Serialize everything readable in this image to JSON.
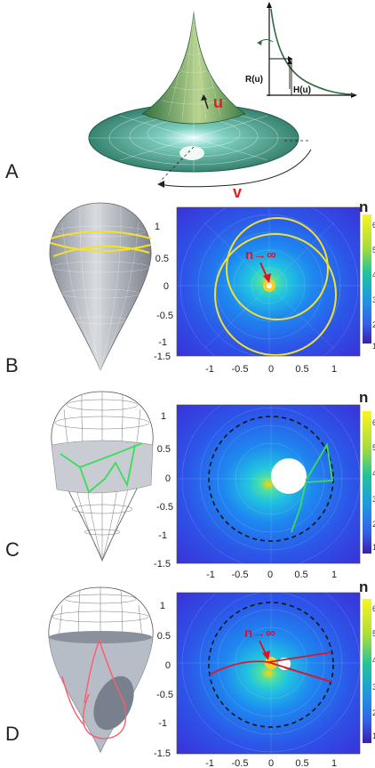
{
  "panels": {
    "a": {
      "letter": "A",
      "u_label": "u",
      "v_label": "v",
      "inset": {
        "r_label": "R(u)",
        "h_label": "H(u)"
      }
    },
    "b": {
      "letter": "B",
      "annotation": "n→∞",
      "colorbar_label": "n"
    },
    "c": {
      "letter": "C",
      "colorbar_label": "n"
    },
    "d": {
      "letter": "D",
      "annotation": "n→∞",
      "colorbar_label": "n"
    }
  },
  "axes": {
    "x_ticks": [
      "-1",
      "-0.5",
      "0",
      "0.5",
      "1"
    ],
    "y_ticks": [
      "1",
      "0.5",
      "0",
      "-0.5",
      "-1",
      "-1.5"
    ]
  },
  "colorbar_ticks": [
    "6",
    "5",
    "4",
    "3",
    "2",
    "1"
  ],
  "colors": {
    "surface_green": "#2e7d5b",
    "yellow_ray": "#f2e033",
    "green_ray": "#3ddc5a",
    "red_ray": "#e0142a",
    "annotation_red": "#e01030"
  }
}
